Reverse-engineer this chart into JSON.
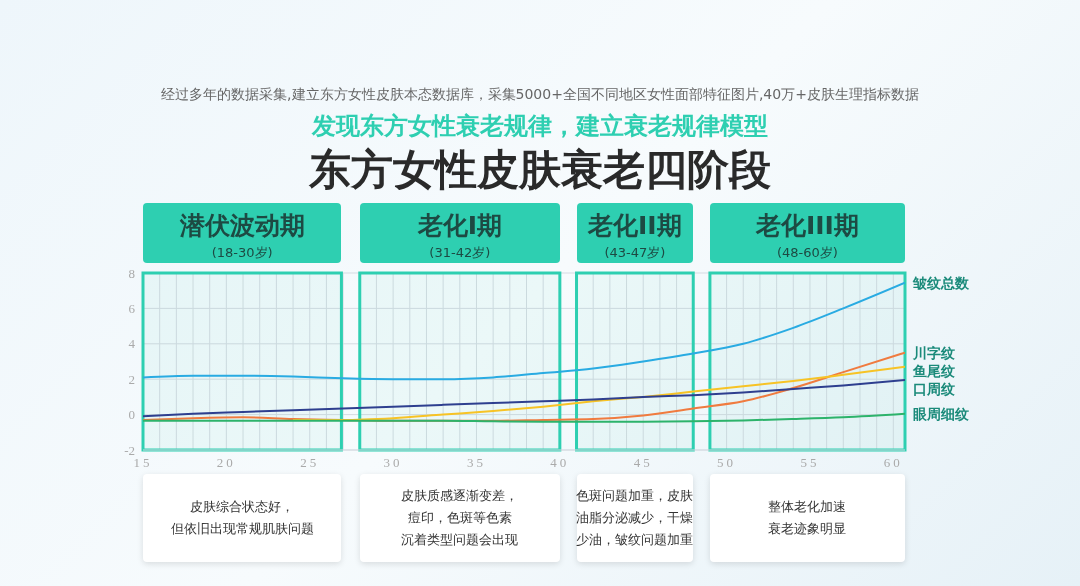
{
  "chart_data": {
    "type": "line",
    "title": "东方女性皮肤衰老四阶段",
    "subtitle": "发现东方女性衰老规律，建立衰老规律模型",
    "annotations": [
      "经过多年的数据采集,建立东方女性皮肤本态数据库，采集5000+全国不同地区女性面部特征图片,40万+皮肤生理指标数据",
      "(18-30岁)",
      "(31-42岁)",
      "(43-47岁)",
      "(48-60岁)",
      "皮肤综合状态好，",
      "但依旧出现常规肌肤问题",
      "皮肤质感逐渐变差，",
      "痘印，色斑等色素",
      "沉着类型问题会出现",
      "色斑问题加重，皮肤",
      "油脂分泌减少，干燥",
      "少油，皱纹问题加重",
      "整体老化加速",
      "衰老迹象明显"
    ],
    "x": [
      15,
      18,
      21,
      24,
      27,
      30,
      33,
      36,
      39,
      42,
      45,
      48,
      51,
      54,
      57,
      60.7
    ],
    "series": [
      {
        "name": "皱纹总数",
        "color": "#29abe2",
        "values": [
          2.1,
          2.2,
          2.2,
          2.15,
          2.05,
          2.0,
          2.0,
          2.1,
          2.35,
          2.6,
          3.0,
          3.45,
          4.0,
          4.9,
          6.0,
          7.45
        ]
      },
      {
        "name": "川字纹",
        "color": "#f07b3f",
        "values": [
          -0.3,
          -0.2,
          -0.15,
          -0.25,
          -0.3,
          -0.35,
          -0.35,
          -0.35,
          -0.3,
          -0.25,
          -0.05,
          0.35,
          0.75,
          1.5,
          2.4,
          3.5
        ]
      },
      {
        "name": "鱼尾纹",
        "color": "#f7c325",
        "values": [
          null,
          null,
          null,
          -0.3,
          -0.3,
          -0.2,
          0.0,
          0.2,
          0.45,
          0.75,
          1.0,
          1.3,
          1.6,
          1.9,
          2.25,
          2.7
        ]
      },
      {
        "name": "口周纹",
        "color": "#2e3f8f",
        "values": [
          -0.1,
          0.05,
          0.15,
          0.25,
          0.35,
          0.45,
          0.55,
          0.65,
          0.75,
          0.85,
          1.0,
          1.1,
          1.25,
          1.45,
          1.65,
          1.95
        ]
      },
      {
        "name": "眼周细纹",
        "color": "#2db36b",
        "values": [
          -0.35,
          -0.35,
          -0.35,
          -0.35,
          -0.35,
          -0.35,
          -0.35,
          -0.38,
          -0.4,
          -0.4,
          -0.4,
          -0.38,
          -0.33,
          -0.25,
          -0.15,
          0.05
        ]
      }
    ],
    "xlim": [
      15,
      60.7
    ],
    "xticks": [
      15,
      {
        "value": 16,
        "label": null
      },
      {
        "value": 17,
        "label": null
      },
      {
        "value": 18,
        "label": null
      },
      {
        "value": 19,
        "label": null
      },
      20,
      {
        "value": 21,
        "label": null
      },
      {
        "value": 22,
        "label": null
      },
      {
        "value": 23,
        "label": null
      },
      {
        "value": 24,
        "label": null
      },
      25,
      {
        "value": 26,
        "label": null
      },
      {
        "value": 27,
        "label": null
      },
      {
        "value": 29,
        "label": null
      },
      30,
      {
        "value": 31,
        "label": null
      },
      {
        "value": 32,
        "label": null
      },
      {
        "value": 33,
        "label": null
      },
      {
        "value": 34,
        "label": null
      },
      35,
      {
        "value": 36,
        "label": null
      },
      {
        "value": 37,
        "label": null
      },
      {
        "value": 38,
        "label": null
      },
      {
        "value": 39,
        "label": null
      },
      40,
      {
        "value": 42,
        "label": null
      },
      {
        "value": 43,
        "label": null
      },
      {
        "value": 44,
        "label": null
      },
      45,
      {
        "value": 46,
        "label": null
      },
      {
        "value": 47,
        "label": null
      },
      50,
      {
        "value": 51,
        "label": null
      },
      {
        "value": 52,
        "label": null
      },
      {
        "value": 53,
        "label": null
      },
      {
        "value": 54,
        "label": null
      },
      55,
      {
        "value": 56,
        "label": null
      },
      {
        "value": 57,
        "label": null
      },
      {
        "value": 58,
        "label": null
      },
      {
        "value": 59,
        "label": null
      },
      60
    ],
    "ylim": [
      -2,
      8
    ],
    "yticks": [
      -2,
      0,
      2,
      4,
      6,
      8
    ],
    "bands": [
      {
        "axis": "x",
        "from": 15,
        "to": 26.9,
        "label": "潜伏波动期",
        "color": "#2ecfb1"
      },
      {
        "axis": "x",
        "from": 28,
        "to": 40,
        "label": "老化I期",
        "color": "#2ecfb1"
      },
      {
        "axis": "x",
        "from": 41,
        "to": 48,
        "label": "老化II期",
        "color": "#2ecfb1"
      },
      {
        "axis": "x",
        "from": 49,
        "to": 60.7,
        "label": "老化III期",
        "color": "#2ecfb1"
      }
    ],
    "grid": true,
    "legend": false,
    "marker": "none",
    "line_style": "solid"
  }
}
